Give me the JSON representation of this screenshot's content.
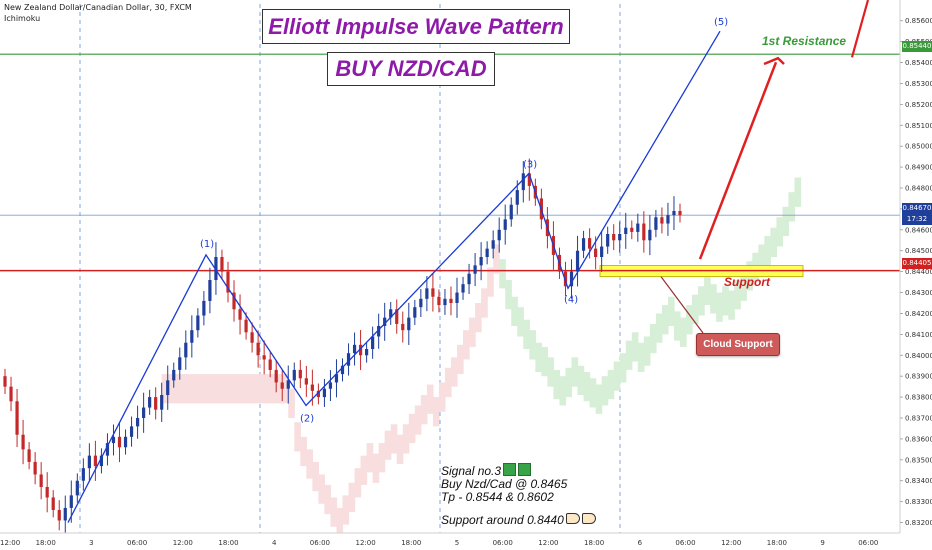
{
  "header": {
    "symbol_line": "New Zealand Dollar/Canadian Dollar, 30, FXCM",
    "indicator": "Ichimoku"
  },
  "titles": {
    "main": "Elliott Impulse Wave Pattern",
    "signal": "BUY NZD/CAD"
  },
  "labels": {
    "resistance": "1st Resistance",
    "support": "Support",
    "cloud_support": "Cloud Support"
  },
  "notes": {
    "line1": "Signal no.3",
    "line2": "Buy Nzd/Cad @ 0.8465",
    "line3": "Tp - 0.8544 & 0.8602",
    "line4": "Support around 0.8440"
  },
  "price_tags": {
    "resistance": "0.85440",
    "current": "0.84670",
    "timer": "17:32",
    "support": "0.84405"
  },
  "colors": {
    "wave": "#1a3bd6",
    "resistance": "#3a9a3a",
    "support": "#d02020",
    "bull": "#1f3f9a",
    "bear": "#c42828",
    "cloud_bull": "#d7eed7",
    "cloud_bear": "#f8dede",
    "support_zone": "#ffff55"
  },
  "chart_data": {
    "type": "candlestick",
    "title": "Elliott Impulse Wave Pattern",
    "instrument": "New Zealand Dollar/Canadian Dollar, 30, FXCM",
    "indicators": [
      "Ichimoku"
    ],
    "y_axis": {
      "ylim": [
        0.8315,
        0.8568
      ],
      "ticks": [
        "0.85600",
        "0.85500",
        "0.85400",
        "0.85300",
        "0.85200",
        "0.85100",
        "0.85000",
        "0.84900",
        "0.84800",
        "0.84700",
        "0.84600",
        "0.84500",
        "0.84400",
        "0.84300",
        "0.84200",
        "0.84100",
        "0.84000",
        "0.83900",
        "0.83800",
        "0.83700",
        "0.83600",
        "0.83500",
        "0.83400",
        "0.83300",
        "0.83200"
      ],
      "position": "right"
    },
    "x_axis": {
      "ticks": [
        "12:00",
        "18:00",
        "3",
        "06:00",
        "12:00",
        "18:00",
        "4",
        "06:00",
        "12:00",
        "18:00",
        "5",
        "06:00",
        "12:00",
        "18:00",
        "6",
        "06:00",
        "12:00",
        "18:00",
        "9",
        "06:00"
      ]
    },
    "horizontal_levels": [
      {
        "name": "1st Resistance",
        "price": 0.8544
      },
      {
        "name": "Support",
        "price": 0.84405
      },
      {
        "name": "Current",
        "price": 0.8467
      }
    ],
    "waves": [
      {
        "label": "(1)",
        "price": 0.8448
      },
      {
        "label": "(2)",
        "price": 0.8376
      },
      {
        "label": "(3)",
        "price": 0.8487
      },
      {
        "label": "(4)",
        "price": 0.8432
      },
      {
        "label": "(5)",
        "price": 0.8555
      }
    ],
    "wave_start_price": 0.832,
    "close": [
      0.8385,
      0.8378,
      0.8362,
      0.8355,
      0.8349,
      0.8343,
      0.8337,
      0.8332,
      0.8326,
      0.8321,
      0.8327,
      0.8333,
      0.834,
      0.8346,
      0.8352,
      0.8347,
      0.8352,
      0.8358,
      0.8361,
      0.8356,
      0.8361,
      0.8366,
      0.837,
      0.8375,
      0.838,
      0.8374,
      0.8381,
      0.8388,
      0.8393,
      0.8399,
      0.8406,
      0.8412,
      0.8419,
      0.8426,
      0.8436,
      0.8447,
      0.844,
      0.843,
      0.8422,
      0.8417,
      0.8411,
      0.8406,
      0.84,
      0.8398,
      0.8393,
      0.8387,
      0.8384,
      0.8388,
      0.8393,
      0.8389,
      0.8386,
      0.8383,
      0.838,
      0.8384,
      0.8387,
      0.8391,
      0.8395,
      0.8401,
      0.8405,
      0.84,
      0.8403,
      0.8409,
      0.8414,
      0.8418,
      0.8422,
      0.8415,
      0.8412,
      0.8418,
      0.8423,
      0.8427,
      0.8432,
      0.8428,
      0.8424,
      0.8427,
      0.8425,
      0.843,
      0.8434,
      0.8439,
      0.8443,
      0.8447,
      0.8451,
      0.8455,
      0.846,
      0.8465,
      0.8472,
      0.8479,
      0.8487,
      0.8481,
      0.8475,
      0.8465,
      0.8457,
      0.8448,
      0.844,
      0.8433,
      0.844,
      0.845,
      0.8456,
      0.8451,
      0.8447,
      0.8452,
      0.8458,
      0.8455,
      0.8458,
      0.8461,
      0.8459,
      0.8463,
      0.8455,
      0.846,
      0.8466,
      0.8463,
      0.8467,
      0.8469,
      0.8467
    ],
    "last_price": 0.8467,
    "arrow_projection": {
      "from": 0.8446,
      "to": 0.8543
    }
  }
}
